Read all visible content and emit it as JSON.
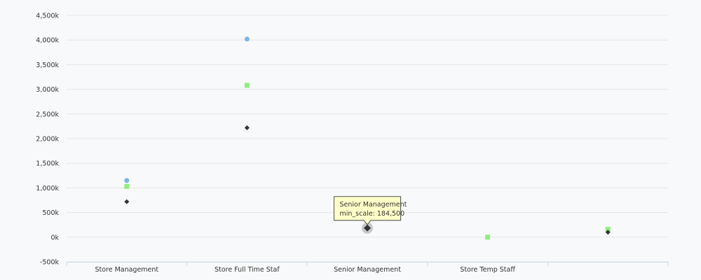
{
  "chart_data": {
    "type": "scatter",
    "categories": [
      "Store Management",
      "Store Full Time Staf",
      "Senior Management",
      "Store Temp Staff",
      ""
    ],
    "y_ticks": [
      "-500k",
      "0k",
      "500k",
      "1,000k",
      "1,500k",
      "2,000k",
      "2,500k",
      "3,000k",
      "3,500k",
      "4,000k",
      "4,500k"
    ],
    "ylim": [
      -500000,
      4500000
    ],
    "grid": true,
    "series": [
      {
        "shape": "circle",
        "color": "#7cb5ec",
        "values": [
          1150000,
          4020000,
          null,
          null,
          null
        ]
      },
      {
        "shape": "square",
        "color": "#90ed7d",
        "values": [
          1030000,
          3080000,
          null,
          0,
          160000
        ]
      },
      {
        "marker": "diamond",
        "color": "#333333",
        "values": [
          720000,
          2220000,
          184500,
          null,
          100000
        ]
      }
    ],
    "tooltip": {
      "category_index": 2,
      "line1": "Senior Management",
      "line2": "min_scale: 184,500"
    }
  }
}
